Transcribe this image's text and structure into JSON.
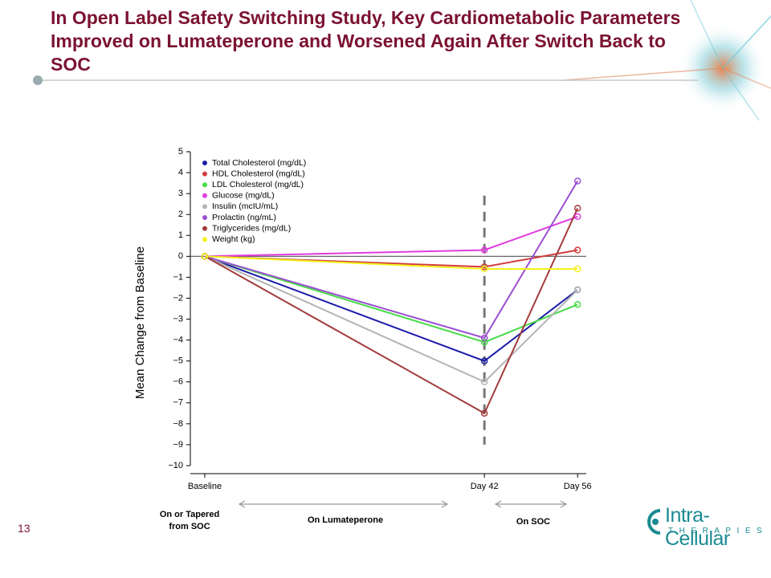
{
  "chart_data": {
    "type": "line",
    "title": "In Open Label Safety Switching Study, Key Cardiometabolic Parameters Improved on Lumateperone and Worsened Again After Switch Back to SOC",
    "y_label": "Mean Change from Baseline",
    "x": [
      0,
      42,
      56
    ],
    "xlim": [
      -2,
      57
    ],
    "xticks": [
      {
        "value": 0,
        "label": "Baseline"
      },
      {
        "value": 42,
        "label": "Day 42"
      },
      {
        "value": 56,
        "label": "Day 56"
      }
    ],
    "ylim": [
      -10,
      5
    ],
    "yticks": [
      {
        "value": -10,
        "label": "−10"
      },
      {
        "value": -9,
        "label": "−9"
      },
      {
        "value": -8,
        "label": "−8"
      },
      {
        "value": -7,
        "label": "−7"
      },
      {
        "value": -6,
        "label": "−6"
      },
      {
        "value": -5,
        "label": "−5"
      },
      {
        "value": -4,
        "label": "−4"
      },
      {
        "value": -3,
        "label": "−3"
      },
      {
        "value": -2,
        "label": "−2"
      },
      {
        "value": -1,
        "label": "−1"
      },
      0,
      1,
      2,
      3,
      4,
      5
    ],
    "hlines": [
      0
    ],
    "vlines": [
      42
    ],
    "grid": false,
    "legend": "top-left",
    "series": [
      {
        "name": "Total Cholesterol (mg/dL)",
        "color": "#1c1ca8",
        "values": [
          0,
          -5,
          -1.6
        ]
      },
      {
        "name": "HDL Cholesterol (mg/dL)",
        "color": "#d23c3c",
        "values": [
          0,
          -0.5,
          0.3
        ]
      },
      {
        "name": "LDL Cholesterol (mg/dL)",
        "color": "#46dc46",
        "values": [
          0,
          -4.1,
          -2.3
        ]
      },
      {
        "name": "Glucose (mg/dL)",
        "color": "#e03ce0",
        "values": [
          0,
          0.3,
          1.9
        ]
      },
      {
        "name": "Insulin (mcIU/mL)",
        "color": "#b4b4b4",
        "values": [
          0,
          -6,
          -1.6
        ]
      },
      {
        "name": "Prolactin (ng/mL)",
        "color": "#9a4ed0",
        "values": [
          0,
          -3.9,
          3.6
        ]
      },
      {
        "name": "Triglycerides (mg/dL)",
        "color": "#a23c3c",
        "values": [
          0,
          -7.5,
          2.3
        ]
      },
      {
        "name": "Weight (kg)",
        "color": "#f2f21c",
        "values": [
          0,
          -0.6,
          -0.6
        ]
      }
    ],
    "annotations": [
      "On or Tapered from SOC",
      "On Lumateperone",
      "On SOC"
    ]
  },
  "page_number": "13",
  "logo": {
    "name": "Intra-Cellular",
    "tagline": "THERAPIES"
  }
}
